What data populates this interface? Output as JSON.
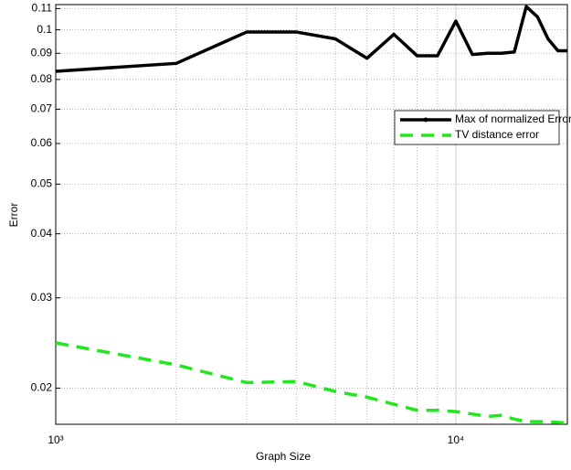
{
  "chart_data": {
    "type": "line",
    "xlabel": "Graph Size",
    "ylabel": "Error",
    "xscale": "log",
    "yscale": "log",
    "grid": true,
    "legend": "upper right",
    "xlim": [
      1000,
      19000
    ],
    "ylim": [
      0.017,
      0.112
    ],
    "xticks": [
      {
        "value": 1000,
        "label": "10³"
      },
      {
        "value": 10000,
        "label": "10⁴"
      }
    ],
    "xgrid": [
      2000,
      3000,
      4000,
      5000,
      6000,
      7000,
      8000,
      9000
    ],
    "yticks": [
      0.02,
      0.03,
      0.04,
      0.05,
      0.06,
      0.07,
      0.08,
      0.09,
      0.1,
      0.11
    ],
    "series": [
      {
        "name": "Max of normalized Error",
        "color": "#000000",
        "x": [
          1000,
          2000,
          3000,
          4000,
          5000,
          6000,
          7000,
          8000,
          9000,
          10000,
          11000,
          12000,
          13000,
          14000,
          15000,
          16000,
          17000,
          18000,
          19000
        ],
        "values": [
          0.083,
          0.086,
          0.099,
          0.099,
          0.096,
          0.088,
          0.098,
          0.089,
          0.089,
          0.104,
          0.0895,
          0.09,
          0.09,
          0.0905,
          0.111,
          0.106,
          0.096,
          0.091,
          0.091
        ]
      },
      {
        "name": "TV distance error",
        "color": "#22e61e",
        "x": [
          1000,
          2000,
          3000,
          4000,
          5000,
          6000,
          7000,
          8000,
          9000,
          10000,
          11000,
          12000,
          13000,
          14000,
          15000,
          17000,
          19000
        ],
        "values": [
          0.0245,
          0.0222,
          0.0205,
          0.0206,
          0.0197,
          0.0192,
          0.0186,
          0.0181,
          0.0181,
          0.018,
          0.0178,
          0.0176,
          0.0177,
          0.0174,
          0.0172,
          0.0172,
          0.0171
        ]
      }
    ]
  }
}
